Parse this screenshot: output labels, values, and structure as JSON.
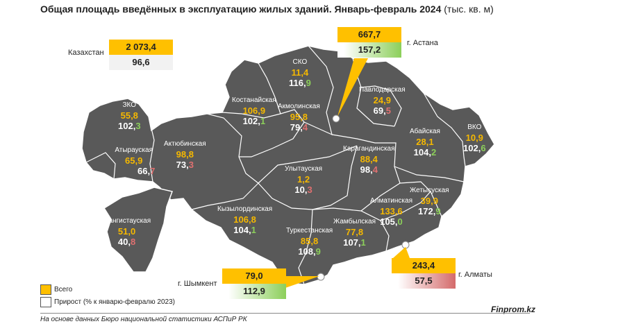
{
  "title": "Общая площадь введённых в эксплуатацию жилых зданий. Январь-февраль 2024",
  "unit": "(тыс. кв. м)",
  "colors": {
    "map_fill": "#595959",
    "total_text": "#f5b800",
    "growth_up": "#8ccf5a",
    "growth_down": "#e07070",
    "box_total": "#ffc000"
  },
  "kazakhstan": {
    "label": "Казахстан",
    "total": "2 073,4",
    "growth": "96,6"
  },
  "cities": {
    "astana": {
      "label": "г. Астана",
      "total": "667,7",
      "growth": "157,2"
    },
    "almaty": {
      "label": "г. Алматы",
      "total": "243,4",
      "growth": "57,5"
    },
    "shymkent": {
      "label": "г. Шымкент",
      "total": "79,0",
      "growth": "112,9"
    }
  },
  "regions": [
    {
      "id": "sko",
      "name": "СКО",
      "total": "11,4",
      "growth_int": "116,",
      "growth_last": "9",
      "trend": "up"
    },
    {
      "id": "pavlodar",
      "name": "Павлодарская",
      "total": "24,9",
      "growth_int": "69,",
      "growth_last": "5",
      "trend": "down"
    },
    {
      "id": "kostanay",
      "name": "Костанайская",
      "total": "106,9",
      "growth_int": "102,",
      "growth_last": "1",
      "trend": "up"
    },
    {
      "id": "akmola",
      "name": "Акмолинская",
      "total": "95,8",
      "growth_int": "79,",
      "growth_last": "4",
      "trend": "down"
    },
    {
      "id": "zko",
      "name": "ЗКО",
      "total": "55,8",
      "growth_int": "102,",
      "growth_last": "3",
      "trend": "up"
    },
    {
      "id": "aktobe",
      "name": "Актюбинская",
      "total": "98,8",
      "growth_int": "73,",
      "growth_last": "3",
      "trend": "down"
    },
    {
      "id": "atyrau",
      "name": "Атырауская",
      "total": "65,9",
      "growth_int": "66,",
      "growth_last": "7",
      "trend": "down"
    },
    {
      "id": "karaganda",
      "name": "Карагандинская",
      "total": "88,4",
      "growth_int": "98,",
      "growth_last": "4",
      "trend": "down"
    },
    {
      "id": "abay",
      "name": "Абайская",
      "total": "28,1",
      "growth_int": "104,",
      "growth_last": "2",
      "trend": "up"
    },
    {
      "id": "vko",
      "name": "ВКО",
      "total": "10,9",
      "growth_int": "102,",
      "growth_last": "6",
      "trend": "up"
    },
    {
      "id": "ulytau",
      "name": "Улытауская",
      "total": "1,2",
      "growth_int": "10,",
      "growth_last": "3",
      "trend": "down"
    },
    {
      "id": "zhetysu",
      "name": "Жетысуская",
      "total": "39,9",
      "growth_int": "172,",
      "growth_last": "9",
      "trend": "up"
    },
    {
      "id": "almaty_reg",
      "name": "Алматинская",
      "total": "133,6",
      "growth_int": "105,",
      "growth_last": "0",
      "trend": "up"
    },
    {
      "id": "mangystau",
      "name": "Мангистауская",
      "total": "51,0",
      "growth_int": "40,",
      "growth_last": "8",
      "trend": "down"
    },
    {
      "id": "kyzylorda",
      "name": "Кызылординская",
      "total": "106,8",
      "growth_int": "104,",
      "growth_last": "1",
      "trend": "up"
    },
    {
      "id": "turkestan",
      "name": "Туркестанская",
      "total": "85,8",
      "growth_int": "108,",
      "growth_last": "9",
      "trend": "up"
    },
    {
      "id": "zhambyl",
      "name": "Жамбылская",
      "total": "77,8",
      "growth_int": "107,",
      "growth_last": "1",
      "trend": "up"
    }
  ],
  "legend": {
    "total": "Всего",
    "growth": "Прирост (% к январю-февралю 2023)"
  },
  "source": "На основе данных Бюро национальной статистики АСПиР РК",
  "brand": "Finprom.kz"
}
